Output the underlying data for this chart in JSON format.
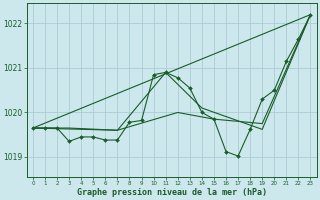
{
  "xlabel": "Graphe pression niveau de la mer (hPa)",
  "background_color": "#cce8ec",
  "grid_color": "#aacdd4",
  "line_color": "#1a5c2a",
  "marker_color": "#1a5c2a",
  "ylabel_ticks": [
    1019,
    1020,
    1021,
    1022
  ],
  "xlim": [
    -0.5,
    23.5
  ],
  "ylim": [
    1018.55,
    1022.45
  ],
  "series1": {
    "x": [
      0,
      1,
      2,
      3,
      4,
      5,
      6,
      7,
      8,
      9,
      10,
      11,
      12,
      13,
      14,
      15,
      16,
      17,
      18,
      19,
      20,
      21,
      22,
      23
    ],
    "y": [
      1019.65,
      1019.65,
      1019.65,
      1019.35,
      1019.45,
      1019.45,
      1019.38,
      1019.38,
      1019.78,
      1019.82,
      1020.85,
      1020.9,
      1020.78,
      1020.55,
      1020.0,
      1019.85,
      1019.12,
      1019.02,
      1019.62,
      1020.3,
      1020.5,
      1021.15,
      1021.65,
      1022.2
    ]
  },
  "series2": {
    "x": [
      0,
      23
    ],
    "y": [
      1019.65,
      1022.2
    ]
  },
  "series3": {
    "x": [
      0,
      7,
      11,
      14,
      19,
      23
    ],
    "y": [
      1019.65,
      1019.6,
      1020.9,
      1020.1,
      1019.62,
      1022.2
    ]
  },
  "series4": {
    "x": [
      0,
      3,
      7,
      12,
      15,
      19,
      23
    ],
    "y": [
      1019.65,
      1019.65,
      1019.6,
      1020.0,
      1019.85,
      1019.75,
      1022.2
    ]
  }
}
